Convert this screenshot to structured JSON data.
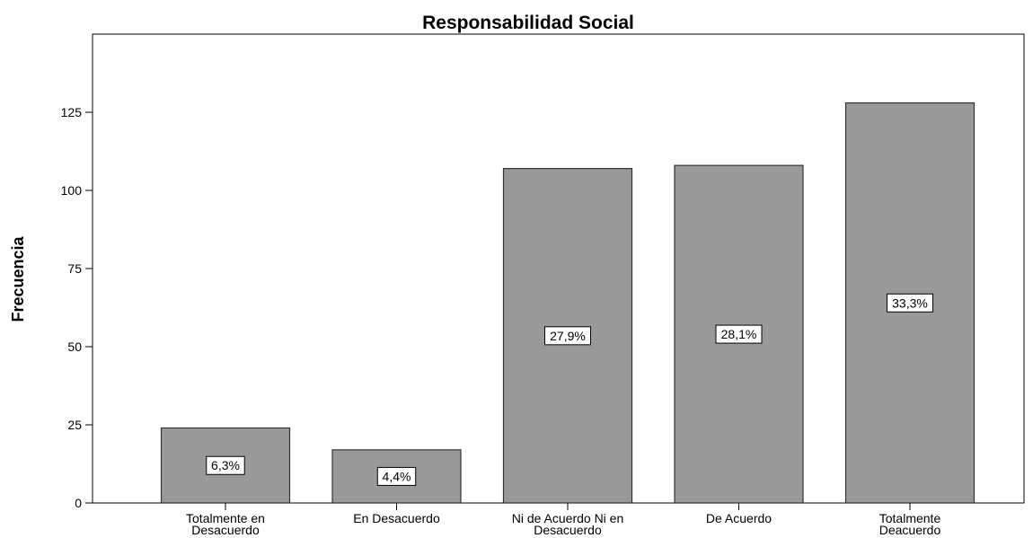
{
  "chart_data": {
    "type": "bar",
    "title": "Responsabilidad Social",
    "xlabel": "",
    "ylabel": "Frecuencia",
    "ylim": [
      0,
      150
    ],
    "yticks": [
      0,
      25,
      50,
      75,
      100,
      125
    ],
    "tick_labels": [
      "0",
      "25",
      "50",
      "75",
      "100",
      "125"
    ],
    "grid": false,
    "legend": "none",
    "categories": [
      [
        "Totalmente en",
        "Desacuerdo"
      ],
      [
        "En Desacuerdo"
      ],
      [
        "Ni de Acuerdo Ni en",
        "Desacuerdo"
      ],
      [
        "De Acuerdo"
      ],
      [
        "Totalmente",
        "Deacuerdo"
      ]
    ],
    "values": [
      24,
      17,
      107,
      108,
      128
    ],
    "data_labels": [
      "6,3%",
      "4,4%",
      "27,9%",
      "28,1%",
      "33,3%"
    ],
    "bar_color": "#999999",
    "bar_edge_color": "#333333"
  }
}
